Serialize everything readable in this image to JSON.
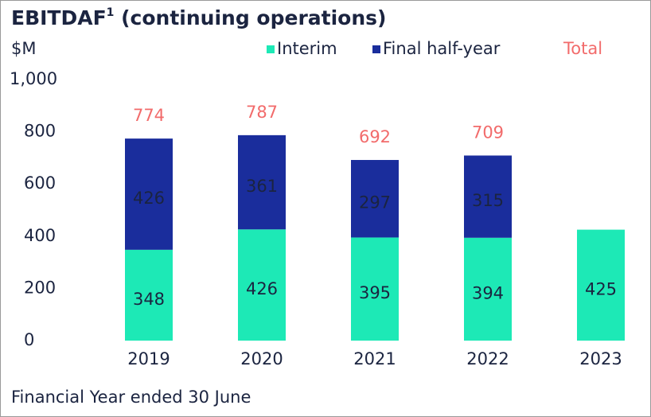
{
  "chart_data": {
    "type": "stacked_bar",
    "title": [
      "EBITDAF",
      "1",
      " (continuing operations)"
    ],
    "y_label": "$M",
    "x_label": "Financial Year ended 30 June",
    "categories": [
      "2019",
      "2020",
      "2021",
      "2022",
      "2023"
    ],
    "series": [
      {
        "name": "Interim",
        "color": "#1de9b6",
        "values": [
          348,
          426,
          395,
          394,
          425
        ]
      },
      {
        "name": "Final half-year",
        "color": "#1a2d9c",
        "values": [
          426,
          361,
          297,
          315,
          null
        ]
      }
    ],
    "totals_name": "Total",
    "totals_color": "#f26b6b",
    "totals": [
      774,
      787,
      692,
      709,
      null
    ],
    "ylim": [
      0,
      1000
    ],
    "yticks": [
      0,
      200,
      400,
      600,
      800,
      {
        "value": 1000,
        "label": "1,000"
      }
    ]
  }
}
